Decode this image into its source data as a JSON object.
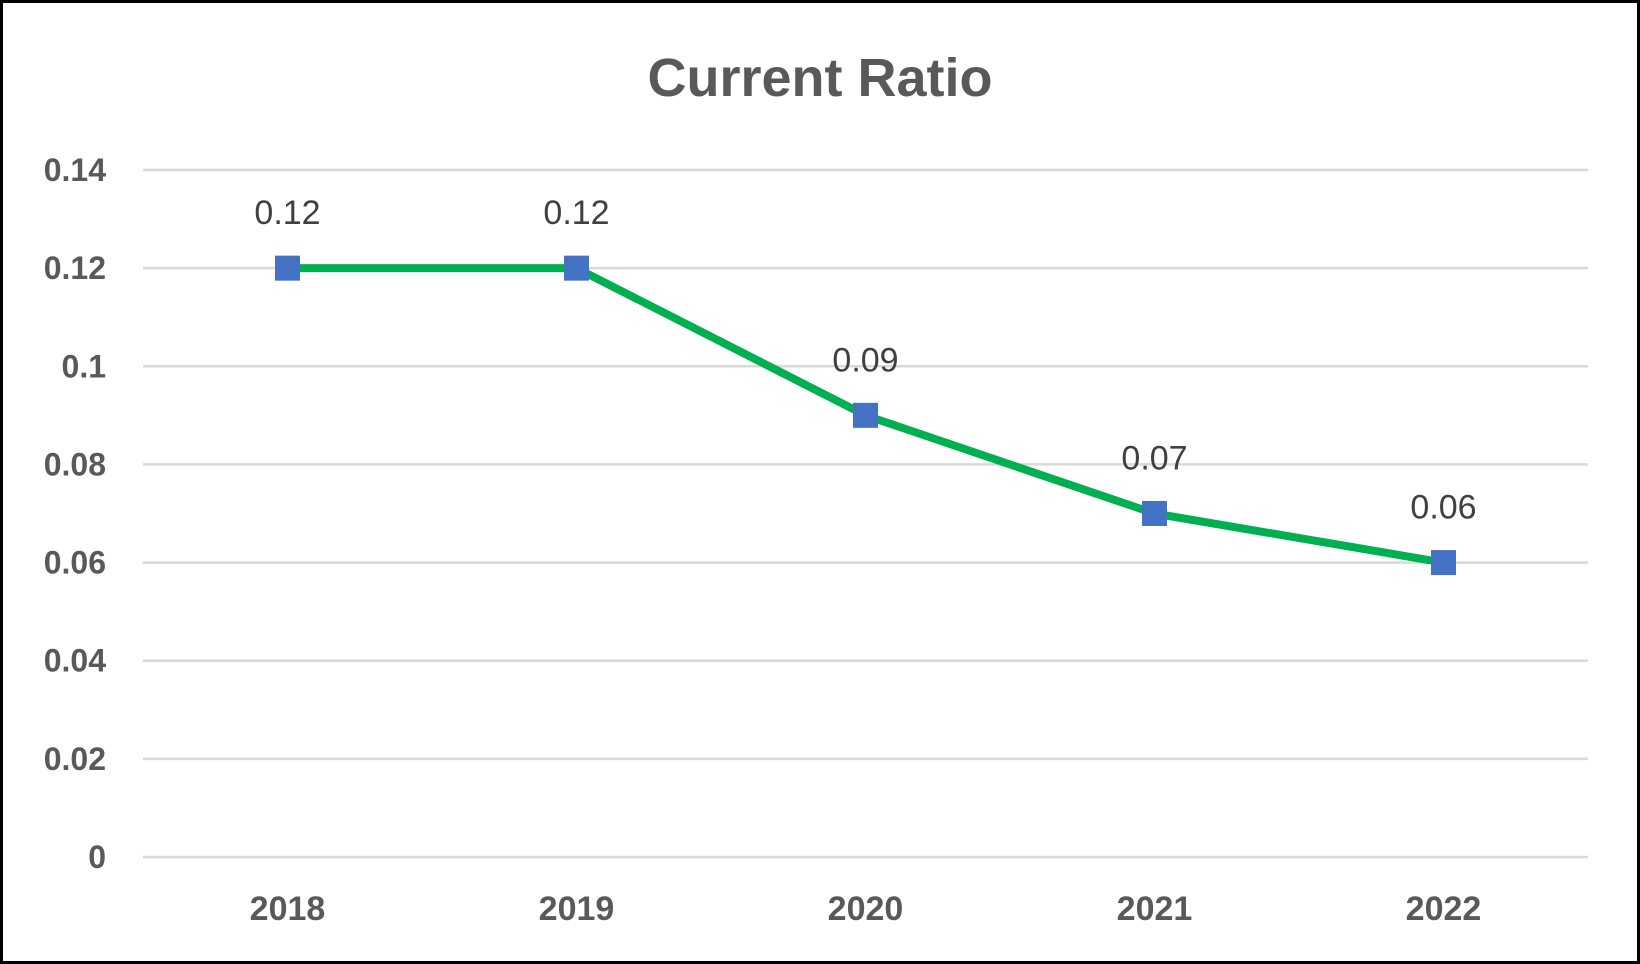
{
  "chart_data": {
    "type": "line",
    "title": "Current Ratio",
    "xlabel": "",
    "ylabel": "",
    "categories": [
      "2018",
      "2019",
      "2020",
      "2021",
      "2022"
    ],
    "series": [
      {
        "values": [
          0.12,
          0.12,
          0.09,
          0.07,
          0.06
        ],
        "data_labels": [
          "0.12",
          "0.12",
          "0.09",
          "0.07",
          "0.06"
        ]
      }
    ],
    "ylim": [
      0,
      0.14
    ],
    "yticks": [
      "0",
      "0.02",
      "0.04",
      "0.06",
      "0.08",
      "0.1",
      "0.12",
      "0.14"
    ],
    "grid": true,
    "legend": "none",
    "colors": {
      "line": "#00b050",
      "marker": "#4472c4",
      "text": "#595959",
      "grid": "#d9d9d9"
    }
  }
}
